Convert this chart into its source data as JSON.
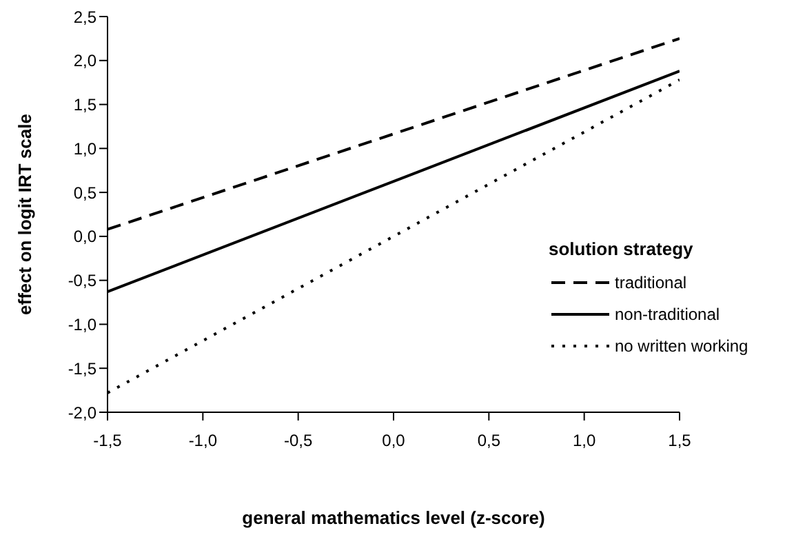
{
  "chart_data": {
    "type": "line",
    "xlabel": "general mathematics level (z-score)",
    "ylabel": "effect on logit IRT scale",
    "legend_title": "solution strategy",
    "legend": "right",
    "grid": false,
    "marker": "none",
    "x": [
      -1.5,
      1.5
    ],
    "xlim": [
      -1.5,
      1.5
    ],
    "xticks": [
      {
        "value": -1.5,
        "label": "-1,5"
      },
      {
        "value": -1.0,
        "label": "-1,0"
      },
      {
        "value": -0.5,
        "label": "-0,5"
      },
      {
        "value": 0,
        "label": "0,0"
      },
      {
        "value": 0.5,
        "label": "0,5"
      },
      {
        "value": 1.0,
        "label": "1,0"
      },
      {
        "value": 1.5,
        "label": "1,5"
      }
    ],
    "ylim": [
      -2.0,
      2.5
    ],
    "yticks": [
      {
        "value": -2.0,
        "label": "-2,0"
      },
      {
        "value": -1.5,
        "label": "-1,5"
      },
      {
        "value": -1.0,
        "label": "-1,0"
      },
      {
        "value": -0.5,
        "label": "-0,5"
      },
      {
        "value": 0,
        "label": "0,0"
      },
      {
        "value": 0.5,
        "label": "0,5"
      },
      {
        "value": 1.0,
        "label": "1,0"
      },
      {
        "value": 1.5,
        "label": "1,5"
      },
      {
        "value": 2.0,
        "label": "2,0"
      },
      {
        "value": 2.5,
        "label": "2,5"
      }
    ],
    "series": [
      {
        "name": "traditional",
        "color": "#000000",
        "line_style": "dashed",
        "values": [
          0.08,
          2.25
        ]
      },
      {
        "name": "non-traditional",
        "color": "#000000",
        "line_style": "solid",
        "values": [
          -0.63,
          1.88
        ]
      },
      {
        "name": "no written working",
        "color": "#000000",
        "line_style": "dotted",
        "values": [
          -1.78,
          1.78
        ]
      }
    ]
  }
}
